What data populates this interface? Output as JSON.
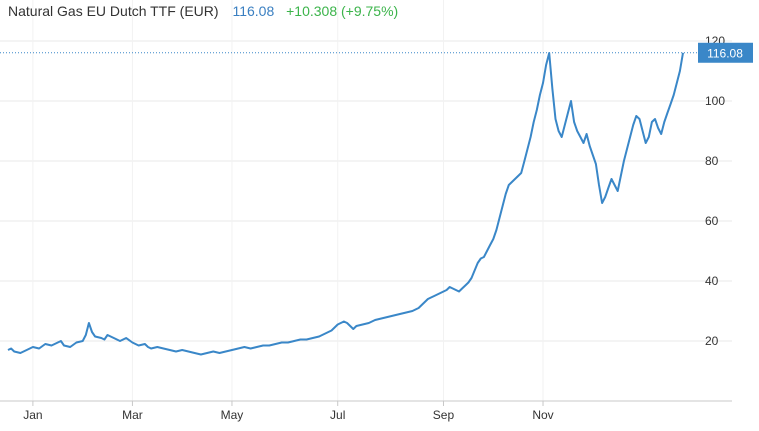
{
  "header": {
    "title": "Natural Gas EU Dutch TTF (EUR)",
    "price": "116.08",
    "change": "+10.308 (+9.75%)"
  },
  "colors": {
    "line": "#3a87c8",
    "price_up": "#3cb44b",
    "price_text": "#3a7fc1",
    "grid": "#e9e9e9",
    "tag_bg": "#3a87c8"
  },
  "chart_data": {
    "type": "line",
    "title": "",
    "xlabel": "",
    "ylabel": "",
    "grid": true,
    "ylim": [
      0,
      120
    ],
    "yticks": [
      20,
      40,
      60,
      80,
      100,
      120
    ],
    "xticks": [
      {
        "label": "Jan",
        "x": 2021.04
      },
      {
        "label": "Mar",
        "x": 2021.2
      },
      {
        "label": "May",
        "x": 2021.36
      },
      {
        "label": "Jul",
        "x": 2021.53
      },
      {
        "label": "Sep",
        "x": 2021.7
      },
      {
        "label": "Nov",
        "x": 2021.86
      }
    ],
    "last_value_label": "116.08",
    "series": [
      {
        "values": [
          [
            2021.0,
            17.0
          ],
          [
            2021.005,
            17.5
          ],
          [
            2021.01,
            16.5
          ],
          [
            2021.02,
            16.0
          ],
          [
            2021.03,
            17.0
          ],
          [
            2021.04,
            18.0
          ],
          [
            2021.05,
            17.5
          ],
          [
            2021.06,
            19.0
          ],
          [
            2021.07,
            18.5
          ],
          [
            2021.08,
            19.5
          ],
          [
            2021.085,
            20.0
          ],
          [
            2021.09,
            18.5
          ],
          [
            2021.1,
            18.0
          ],
          [
            2021.11,
            19.5
          ],
          [
            2021.12,
            20.0
          ],
          [
            2021.125,
            22.0
          ],
          [
            2021.13,
            26.0
          ],
          [
            2021.135,
            23.0
          ],
          [
            2021.14,
            21.5
          ],
          [
            2021.15,
            21.0
          ],
          [
            2021.155,
            20.5
          ],
          [
            2021.16,
            22.0
          ],
          [
            2021.17,
            21.0
          ],
          [
            2021.18,
            20.0
          ],
          [
            2021.19,
            21.0
          ],
          [
            2021.2,
            19.5
          ],
          [
            2021.21,
            18.5
          ],
          [
            2021.22,
            19.0
          ],
          [
            2021.225,
            18.0
          ],
          [
            2021.23,
            17.5
          ],
          [
            2021.24,
            18.0
          ],
          [
            2021.25,
            17.5
          ],
          [
            2021.26,
            17.0
          ],
          [
            2021.27,
            16.5
          ],
          [
            2021.28,
            17.0
          ],
          [
            2021.29,
            16.5
          ],
          [
            2021.3,
            16.0
          ],
          [
            2021.31,
            15.5
          ],
          [
            2021.32,
            16.0
          ],
          [
            2021.33,
            16.5
          ],
          [
            2021.34,
            16.0
          ],
          [
            2021.35,
            16.5
          ],
          [
            2021.36,
            17.0
          ],
          [
            2021.37,
            17.5
          ],
          [
            2021.38,
            18.0
          ],
          [
            2021.39,
            17.5
          ],
          [
            2021.4,
            18.0
          ],
          [
            2021.41,
            18.5
          ],
          [
            2021.42,
            18.5
          ],
          [
            2021.43,
            19.0
          ],
          [
            2021.44,
            19.5
          ],
          [
            2021.45,
            19.5
          ],
          [
            2021.46,
            20.0
          ],
          [
            2021.47,
            20.5
          ],
          [
            2021.48,
            20.5
          ],
          [
            2021.49,
            21.0
          ],
          [
            2021.5,
            21.5
          ],
          [
            2021.51,
            22.5
          ],
          [
            2021.52,
            23.5
          ],
          [
            2021.525,
            24.5
          ],
          [
            2021.53,
            25.5
          ],
          [
            2021.54,
            26.5
          ],
          [
            2021.545,
            26.0
          ],
          [
            2021.55,
            25.0
          ],
          [
            2021.555,
            24.0
          ],
          [
            2021.56,
            25.0
          ],
          [
            2021.57,
            25.5
          ],
          [
            2021.58,
            26.0
          ],
          [
            2021.59,
            27.0
          ],
          [
            2021.6,
            27.5
          ],
          [
            2021.61,
            28.0
          ],
          [
            2021.62,
            28.5
          ],
          [
            2021.63,
            29.0
          ],
          [
            2021.64,
            29.5
          ],
          [
            2021.65,
            30.0
          ],
          [
            2021.66,
            31.0
          ],
          [
            2021.665,
            32.0
          ],
          [
            2021.67,
            33.0
          ],
          [
            2021.675,
            34.0
          ],
          [
            2021.68,
            34.5
          ],
          [
            2021.685,
            35.0
          ],
          [
            2021.69,
            35.5
          ],
          [
            2021.7,
            36.5
          ],
          [
            2021.705,
            37.0
          ],
          [
            2021.71,
            38.0
          ],
          [
            2021.715,
            37.5
          ],
          [
            2021.72,
            37.0
          ],
          [
            2021.725,
            36.5
          ],
          [
            2021.73,
            37.5
          ],
          [
            2021.735,
            38.5
          ],
          [
            2021.74,
            39.5
          ],
          [
            2021.745,
            41.0
          ],
          [
            2021.75,
            43.5
          ],
          [
            2021.755,
            46.0
          ],
          [
            2021.76,
            47.5
          ],
          [
            2021.765,
            48.0
          ],
          [
            2021.77,
            50.0
          ],
          [
            2021.775,
            52.0
          ],
          [
            2021.78,
            54.0
          ],
          [
            2021.785,
            57.0
          ],
          [
            2021.79,
            61.0
          ],
          [
            2021.795,
            65.0
          ],
          [
            2021.8,
            69.0
          ],
          [
            2021.805,
            72.0
          ],
          [
            2021.81,
            73.0
          ],
          [
            2021.815,
            74.0
          ],
          [
            2021.82,
            75.0
          ],
          [
            2021.825,
            76.0
          ],
          [
            2021.83,
            80.0
          ],
          [
            2021.835,
            84.0
          ],
          [
            2021.84,
            88.0
          ],
          [
            2021.845,
            93.0
          ],
          [
            2021.85,
            97.0
          ],
          [
            2021.855,
            102.0
          ],
          [
            2021.86,
            106.0
          ],
          [
            2021.865,
            112.0
          ],
          [
            2021.87,
            116.0
          ],
          [
            2021.875,
            104.0
          ],
          [
            2021.88,
            94.0
          ],
          [
            2021.885,
            90.0
          ],
          [
            2021.89,
            88.0
          ],
          [
            2021.895,
            92.0
          ],
          [
            2021.9,
            96.0
          ],
          [
            2021.905,
            100.0
          ],
          [
            2021.91,
            93.0
          ],
          [
            2021.915,
            90.0
          ],
          [
            2021.92,
            88.0
          ],
          [
            2021.925,
            86.0
          ],
          [
            2021.93,
            89.0
          ],
          [
            2021.935,
            85.0
          ],
          [
            2021.94,
            82.0
          ],
          [
            2021.945,
            79.0
          ],
          [
            2021.95,
            72.0
          ],
          [
            2021.955,
            66.0
          ],
          [
            2021.96,
            68.0
          ],
          [
            2021.965,
            71.0
          ],
          [
            2021.97,
            74.0
          ],
          [
            2021.975,
            72.0
          ],
          [
            2021.98,
            70.0
          ],
          [
            2021.985,
            75.0
          ],
          [
            2021.99,
            80.0
          ],
          [
            2021.995,
            84.0
          ],
          [
            2022.0,
            88.0
          ],
          [
            2022.005,
            92.0
          ],
          [
            2022.01,
            95.0
          ],
          [
            2022.015,
            94.0
          ],
          [
            2022.02,
            90.0
          ],
          [
            2022.025,
            86.0
          ],
          [
            2022.03,
            88.0
          ],
          [
            2022.035,
            93.0
          ],
          [
            2022.04,
            94.0
          ],
          [
            2022.045,
            91.0
          ],
          [
            2022.05,
            89.0
          ],
          [
            2022.055,
            93.0
          ],
          [
            2022.06,
            96.0
          ],
          [
            2022.065,
            99.0
          ],
          [
            2022.07,
            102.0
          ],
          [
            2022.075,
            106.0
          ],
          [
            2022.08,
            110.0
          ],
          [
            2022.085,
            116.08
          ]
        ]
      }
    ]
  }
}
